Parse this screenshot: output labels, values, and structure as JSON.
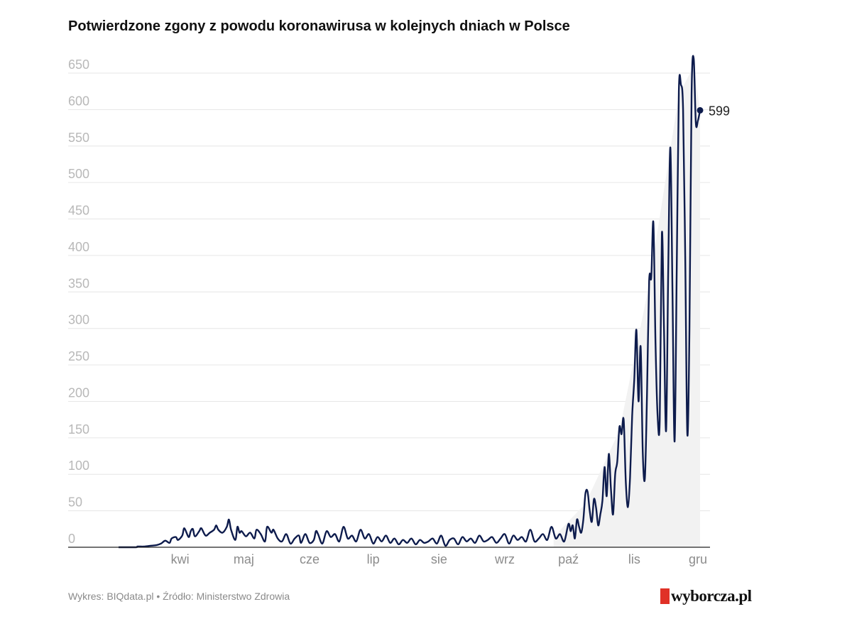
{
  "title": "Potwierdzone zgony z powodu koronawirusa w kolejnych dniach w Polsce",
  "footer": {
    "credit": "Wykres: BIQdata.pl",
    "separator": "•",
    "source": "Źródło: Ministerstwo Zdrowia"
  },
  "logo": {
    "text": "wyborcza.pl",
    "accent_color": "#e03127"
  },
  "colors": {
    "line": "#0d1b4c",
    "grid": "#e6e6e6",
    "area": "#f2f2f2"
  },
  "chart_data": {
    "type": "line",
    "title": "Potwierdzone zgony z powodu koronawirusa w kolejnych dniach w Polsce",
    "xlabel": "",
    "ylabel": "",
    "ylim": [
      0,
      650
    ],
    "yticks": [
      0,
      50,
      100,
      150,
      200,
      250,
      300,
      350,
      400,
      450,
      500,
      550,
      600,
      650
    ],
    "day_range": [
      0,
      275
    ],
    "xticks": [
      {
        "label": "kwi",
        "day": 29
      },
      {
        "label": "maj",
        "day": 59
      },
      {
        "label": "cze",
        "day": 90
      },
      {
        "label": "lip",
        "day": 120
      },
      {
        "label": "sie",
        "day": 151
      },
      {
        "label": "wrz",
        "day": 182
      },
      {
        "label": "paź",
        "day": 212
      },
      {
        "label": "lis",
        "day": 243
      },
      {
        "label": "gru",
        "day": 273
      }
    ],
    "end_label": "599",
    "points": [
      [
        0,
        0
      ],
      [
        8,
        0
      ],
      [
        9,
        1
      ],
      [
        12,
        1
      ],
      [
        15,
        2
      ],
      [
        18,
        3
      ],
      [
        20,
        5
      ],
      [
        22,
        9
      ],
      [
        24,
        6
      ],
      [
        25,
        12
      ],
      [
        27,
        14
      ],
      [
        28,
        10
      ],
      [
        30,
        16
      ],
      [
        31,
        26
      ],
      [
        33,
        14
      ],
      [
        34,
        22
      ],
      [
        35,
        25
      ],
      [
        36,
        15
      ],
      [
        38,
        22
      ],
      [
        39,
        26
      ],
      [
        41,
        16
      ],
      [
        43,
        20
      ],
      [
        45,
        24
      ],
      [
        46,
        30
      ],
      [
        47,
        24
      ],
      [
        49,
        20
      ],
      [
        51,
        28
      ],
      [
        52,
        38
      ],
      [
        53,
        24
      ],
      [
        55,
        10
      ],
      [
        56,
        28
      ],
      [
        57,
        20
      ],
      [
        58,
        22
      ],
      [
        60,
        15
      ],
      [
        62,
        20
      ],
      [
        64,
        12
      ],
      [
        65,
        24
      ],
      [
        67,
        18
      ],
      [
        69,
        8
      ],
      [
        70,
        28
      ],
      [
        72,
        20
      ],
      [
        73,
        24
      ],
      [
        75,
        12
      ],
      [
        77,
        8
      ],
      [
        79,
        18
      ],
      [
        81,
        5
      ],
      [
        83,
        12
      ],
      [
        85,
        16
      ],
      [
        86,
        6
      ],
      [
        88,
        18
      ],
      [
        90,
        6
      ],
      [
        92,
        10
      ],
      [
        93,
        22
      ],
      [
        94,
        18
      ],
      [
        96,
        5
      ],
      [
        98,
        22
      ],
      [
        100,
        14
      ],
      [
        102,
        18
      ],
      [
        104,
        8
      ],
      [
        106,
        28
      ],
      [
        108,
        12
      ],
      [
        110,
        16
      ],
      [
        112,
        8
      ],
      [
        114,
        24
      ],
      [
        116,
        12
      ],
      [
        118,
        18
      ],
      [
        120,
        5
      ],
      [
        122,
        14
      ],
      [
        124,
        8
      ],
      [
        126,
        16
      ],
      [
        128,
        6
      ],
      [
        130,
        12
      ],
      [
        132,
        4
      ],
      [
        134,
        10
      ],
      [
        136,
        6
      ],
      [
        138,
        12
      ],
      [
        140,
        4
      ],
      [
        142,
        10
      ],
      [
        144,
        6
      ],
      [
        146,
        8
      ],
      [
        148,
        12
      ],
      [
        150,
        5
      ],
      [
        152,
        16
      ],
      [
        154,
        2
      ],
      [
        156,
        10
      ],
      [
        158,
        12
      ],
      [
        160,
        4
      ],
      [
        162,
        14
      ],
      [
        164,
        8
      ],
      [
        166,
        12
      ],
      [
        168,
        6
      ],
      [
        170,
        16
      ],
      [
        172,
        8
      ],
      [
        174,
        10
      ],
      [
        176,
        14
      ],
      [
        178,
        6
      ],
      [
        180,
        12
      ],
      [
        182,
        18
      ],
      [
        184,
        5
      ],
      [
        186,
        16
      ],
      [
        188,
        10
      ],
      [
        190,
        14
      ],
      [
        192,
        8
      ],
      [
        194,
        24
      ],
      [
        196,
        8
      ],
      [
        198,
        12
      ],
      [
        200,
        18
      ],
      [
        202,
        10
      ],
      [
        204,
        28
      ],
      [
        206,
        12
      ],
      [
        208,
        18
      ],
      [
        210,
        8
      ],
      [
        212,
        32
      ],
      [
        213,
        22
      ],
      [
        214,
        30
      ],
      [
        215,
        12
      ],
      [
        216,
        38
      ],
      [
        217,
        28
      ],
      [
        218,
        20
      ],
      [
        219,
        38
      ],
      [
        220,
        74
      ],
      [
        221,
        76
      ],
      [
        222,
        50
      ],
      [
        223,
        35
      ],
      [
        224,
        66
      ],
      [
        225,
        54
      ],
      [
        226,
        30
      ],
      [
        227,
        45
      ],
      [
        228,
        64
      ],
      [
        229,
        110
      ],
      [
        230,
        70
      ],
      [
        231,
        128
      ],
      [
        232,
        80
      ],
      [
        233,
        45
      ],
      [
        234,
        100
      ],
      [
        235,
        118
      ],
      [
        236,
        165
      ],
      [
        237,
        155
      ],
      [
        238,
        175
      ],
      [
        239,
        90
      ],
      [
        240,
        55
      ],
      [
        241,
        95
      ],
      [
        242,
        180
      ],
      [
        243,
        230
      ],
      [
        244,
        298
      ],
      [
        245,
        200
      ],
      [
        246,
        275
      ],
      [
        247,
        130
      ],
      [
        248,
        95
      ],
      [
        249,
        210
      ],
      [
        250,
        365
      ],
      [
        251,
        370
      ],
      [
        252,
        445
      ],
      [
        253,
        280
      ],
      [
        254,
        180
      ],
      [
        255,
        175
      ],
      [
        256,
        430
      ],
      [
        257,
        300
      ],
      [
        258,
        160
      ],
      [
        259,
        380
      ],
      [
        260,
        548
      ],
      [
        261,
        350
      ],
      [
        262,
        145
      ],
      [
        263,
        380
      ],
      [
        264,
        625
      ],
      [
        265,
        634
      ],
      [
        266,
        600
      ],
      [
        267,
        400
      ],
      [
        268,
        155
      ],
      [
        269,
        300
      ],
      [
        270,
        620
      ],
      [
        271,
        670
      ],
      [
        272,
        582
      ],
      [
        273,
        585
      ],
      [
        274,
        599
      ]
    ]
  }
}
